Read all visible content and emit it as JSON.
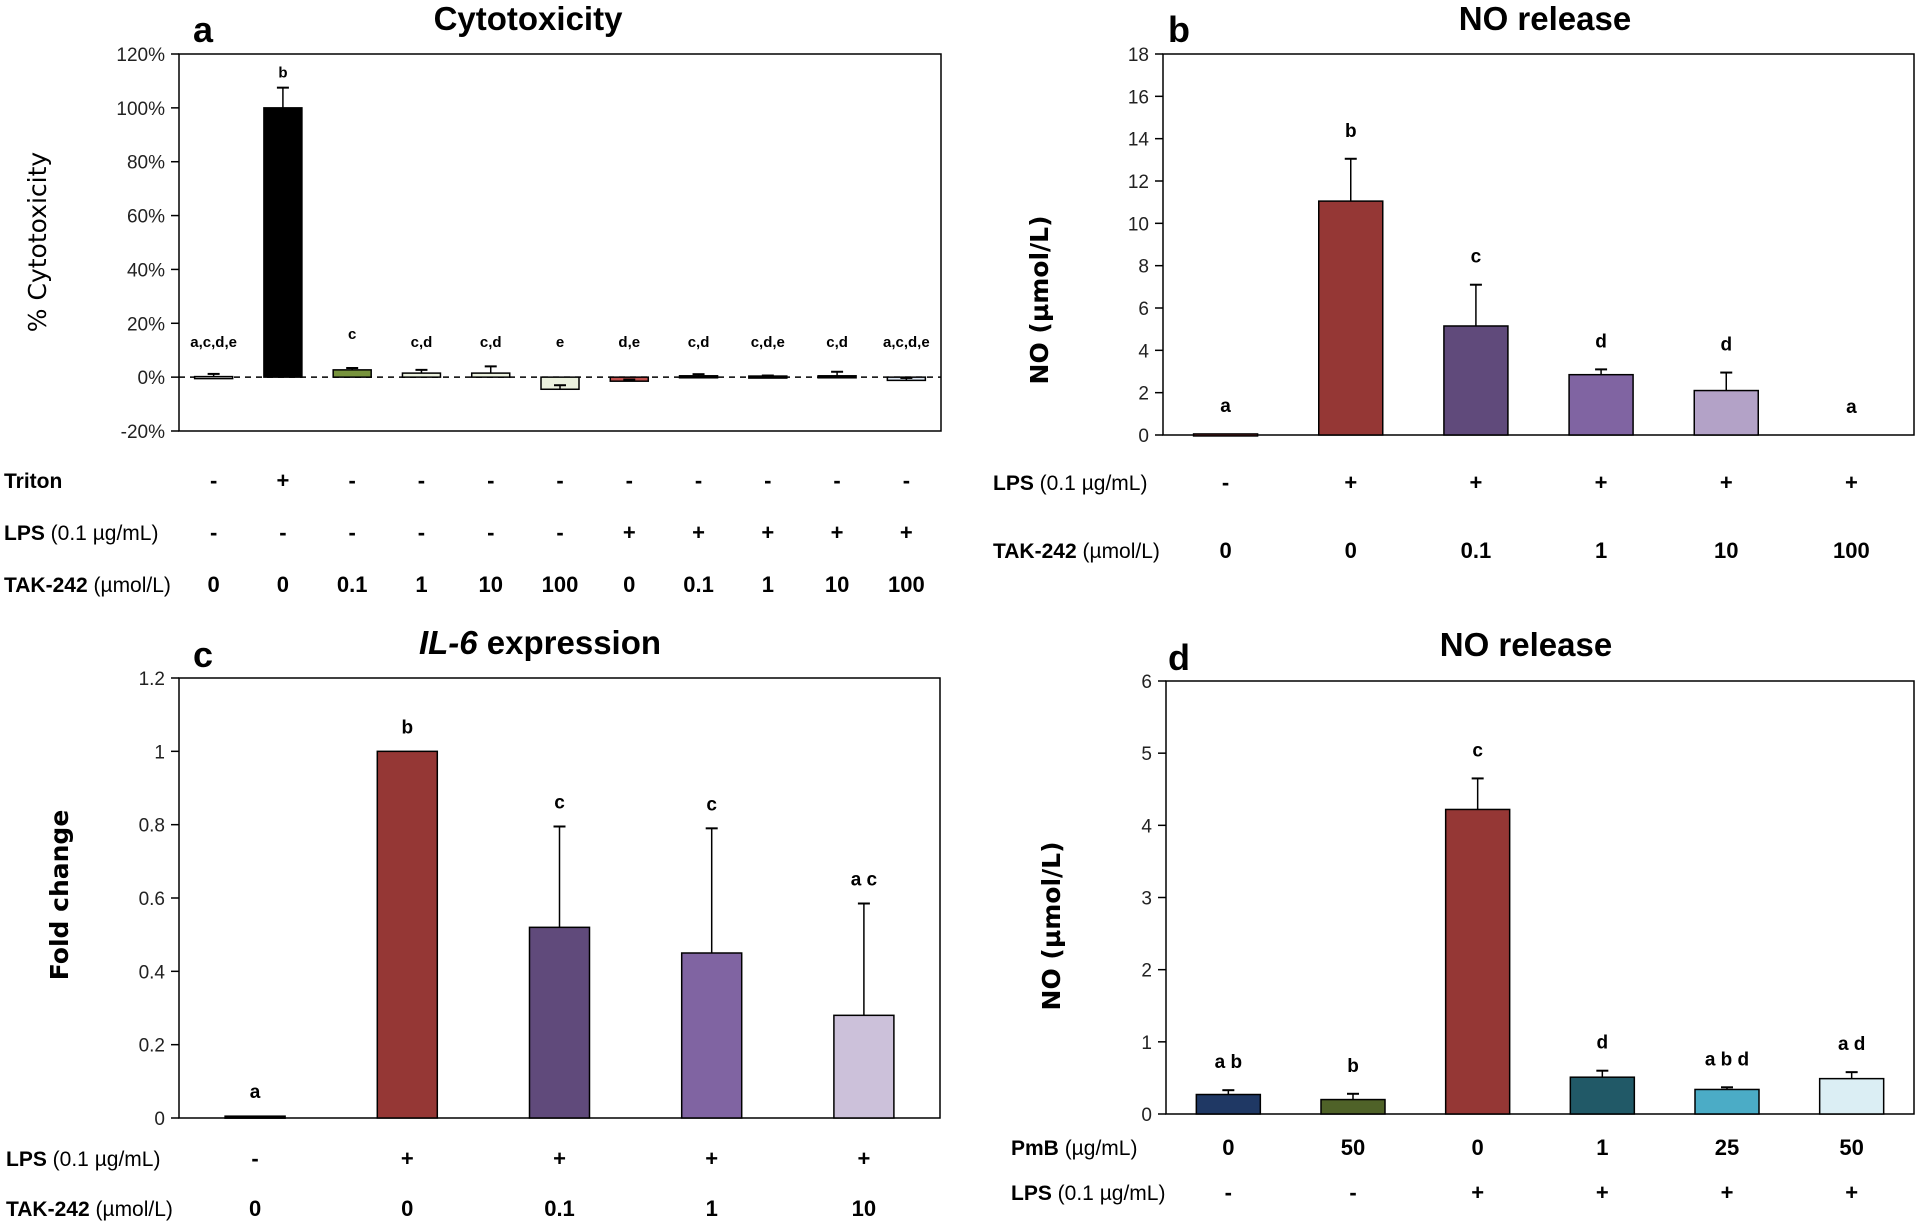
{
  "chart_data": [
    {
      "panel": "a",
      "type": "bar",
      "title": "Cytotoxicity",
      "ylabel": "% Cytotoxicity",
      "xlabel": "",
      "ylim": [
        -20,
        120
      ],
      "yticks": [
        -20,
        0,
        20,
        40,
        60,
        80,
        100,
        120
      ],
      "ytick_labels": [
        "-20%",
        "0%",
        "20%",
        "40%",
        "60%",
        "80%",
        "100%",
        "120%"
      ],
      "zero_line": "dashed",
      "grid": false,
      "legend": "none",
      "values": [
        0.2,
        100,
        2.7,
        1.5,
        1.5,
        -4.5,
        -1.5,
        0.5,
        0.4,
        0.5,
        -1.2
      ],
      "errors": [
        1.0,
        7.5,
        0.7,
        1.2,
        2.5,
        1.5,
        0.6,
        0.6,
        0.2,
        1.5,
        0.9
      ],
      "colors": [
        "#ffffff",
        "#000000",
        "#77933c",
        "#ebf1de",
        "#ebf1de",
        "#ebf1de",
        "#c0504d",
        "#000000",
        "#000000",
        "#000000",
        "#dce6f2"
      ],
      "significance": [
        "a,c,d,e",
        "b",
        "c",
        "c,d",
        "c,d",
        "e",
        "d,e",
        "c,d",
        "c,d,e",
        "c,d",
        "a,c,d,e"
      ],
      "conditions": [
        {
          "label_bold": "Triton",
          "label_rest": "",
          "values": [
            "-",
            "+",
            "-",
            "-",
            "-",
            "-",
            "-",
            "-",
            "-",
            "-",
            "-"
          ]
        },
        {
          "label_bold": "LPS",
          "label_rest": " (0.1 µg/mL)",
          "values": [
            "-",
            "-",
            "-",
            "-",
            "-",
            "-",
            "+",
            "+",
            "+",
            "+",
            "+"
          ]
        },
        {
          "label_bold": "TAK-242",
          "label_rest": " (µmol/L)",
          "values": [
            "0",
            "0",
            "0.1",
            "1",
            "10",
            "100",
            "0",
            "0.1",
            "1",
            "10",
            "100"
          ]
        }
      ]
    },
    {
      "panel": "b",
      "type": "bar",
      "title": "NO release",
      "ylabel": "NO (µmol/L)",
      "xlabel": "",
      "ylim": [
        0,
        18
      ],
      "yticks": [
        0,
        2,
        4,
        6,
        8,
        10,
        12,
        14,
        16,
        18
      ],
      "ytick_labels": [
        "0",
        "2",
        "4",
        "6",
        "8",
        "10",
        "12",
        "14",
        "16",
        "18"
      ],
      "grid": false,
      "legend": "none",
      "values": [
        0.05,
        11.05,
        5.15,
        2.85,
        2.1,
        0
      ],
      "errors": [
        0,
        2.0,
        1.95,
        0.25,
        0.85,
        0
      ],
      "colors": [
        "#8b2e2e",
        "#953735",
        "#604a7b",
        "#8064a2",
        "#b3a2c7",
        "#ffffff"
      ],
      "significance": [
        "a",
        "b",
        "c",
        "d",
        "d",
        "a"
      ],
      "conditions": [
        {
          "label_bold": "LPS",
          "label_rest": " (0.1 µg/mL)",
          "values": [
            "-",
            "+",
            "+",
            "+",
            "+",
            "+"
          ]
        },
        {
          "label_bold": "TAK-242",
          "label_rest": " (µmol/L)",
          "values": [
            "0",
            "0",
            "0.1",
            "1",
            "10",
            "100"
          ]
        }
      ]
    },
    {
      "panel": "c",
      "type": "bar",
      "title": "IL-6 expression",
      "title_italic_part": "IL-6",
      "title_rest": " expression",
      "ylabel": "Fold change",
      "xlabel": "",
      "ylim": [
        0,
        1.2
      ],
      "yticks": [
        0,
        0.2,
        0.4,
        0.6,
        0.8,
        1,
        1.2
      ],
      "ytick_labels": [
        "0",
        "0.2",
        "0.4",
        "0.6",
        "0.8",
        "1",
        "1.2"
      ],
      "grid": false,
      "legend": "none",
      "values": [
        0.005,
        1.0,
        0.52,
        0.45,
        0.28
      ],
      "errors": [
        0,
        0,
        0.275,
        0.34,
        0.305
      ],
      "colors": [
        "#000000",
        "#953735",
        "#604a7b",
        "#8064a2",
        "#ccc1da"
      ],
      "significance": [
        "a",
        "b",
        "c",
        "c",
        "a c"
      ],
      "conditions": [
        {
          "label_bold": "LPS",
          "label_rest": " (0.1 µg/mL)",
          "values": [
            "-",
            "+",
            "+",
            "+",
            "+"
          ]
        },
        {
          "label_bold": "TAK-242",
          "label_rest": " (µmol/L)",
          "values": [
            "0",
            "0",
            "0.1",
            "1",
            "10"
          ]
        }
      ]
    },
    {
      "panel": "d",
      "type": "bar",
      "title": "NO release",
      "ylabel": "NO (µmol/L)",
      "xlabel": "",
      "ylim": [
        0,
        6
      ],
      "yticks": [
        0,
        1,
        2,
        3,
        4,
        5,
        6
      ],
      "ytick_labels": [
        "0",
        "1",
        "2",
        "3",
        "4",
        "5",
        "6"
      ],
      "grid": false,
      "legend": "none",
      "values": [
        0.27,
        0.2,
        4.22,
        0.51,
        0.34,
        0.49
      ],
      "errors": [
        0.06,
        0.08,
        0.43,
        0.09,
        0.03,
        0.09
      ],
      "colors": [
        "#1f3864",
        "#4f6228",
        "#953735",
        "#215967",
        "#4bacc6",
        "#dbeef4"
      ],
      "significance": [
        "a b",
        "b",
        "c",
        "d",
        "a b d",
        "a d"
      ],
      "conditions": [
        {
          "label_bold": "PmB",
          "label_rest": " (µg/mL)",
          "values": [
            "0",
            "50",
            "0",
            "1",
            "25",
            "50"
          ]
        },
        {
          "label_bold": "LPS",
          "label_rest": " (0.1 µg/mL)",
          "values": [
            "-",
            "-",
            "+",
            "+",
            "+",
            "+"
          ]
        }
      ]
    }
  ]
}
